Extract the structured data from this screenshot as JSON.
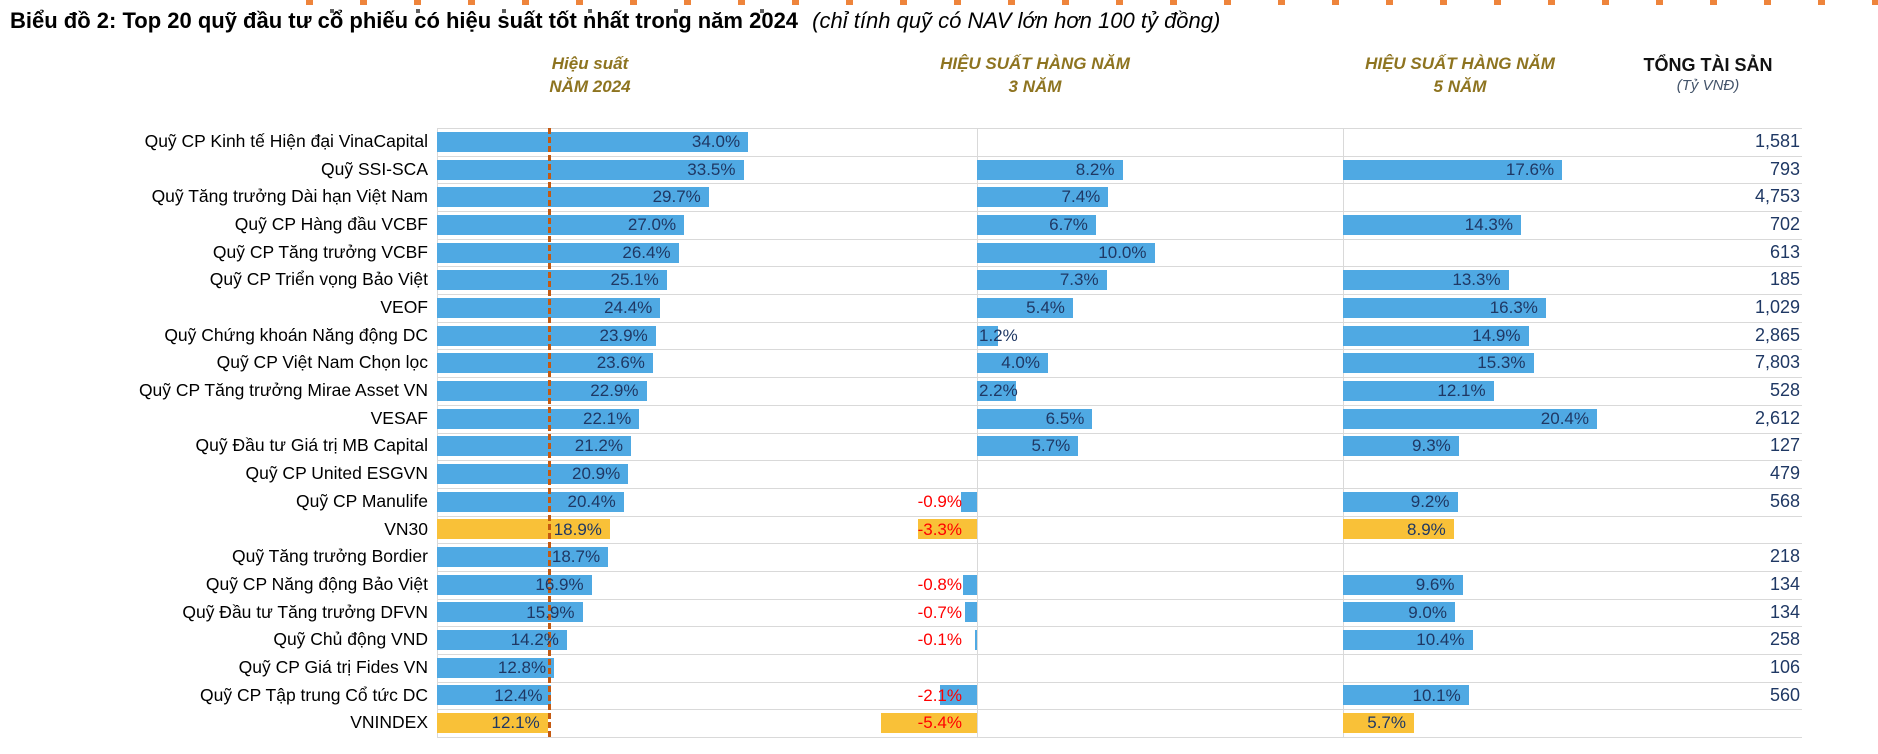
{
  "title": {
    "main": "Biểu đồ 2: Top 20 quỹ đầu tư cổ phiếu có hiệu suất tốt nhất trong năm 2024",
    "note": "(chỉ tính quỹ có NAV lớn hơn 100 tỷ đồng)"
  },
  "columns": {
    "perf_2024": {
      "line1": "Hiệu suất",
      "line2": "NĂM 2024"
    },
    "perf_3y": {
      "line1": "HIỆU SUẤT HÀNG NĂM",
      "line2": "3 NĂM"
    },
    "perf_5y": {
      "line1": "HIỆU SUẤT HÀNG NĂM",
      "line2": "5 NĂM"
    },
    "assets": {
      "line1": "TỔNG TÀI SẢN",
      "line2": "(Tỷ VNĐ)"
    }
  },
  "colors": {
    "bar_blue": "#4FA9E3",
    "bar_benchmark_yellow": "#F9C138",
    "value_navy": "#1F3864",
    "negative_red": "#FF0000",
    "header_gold": "#8E7420",
    "reference_dash": "#C55A11",
    "gridline": "#D9D9D9"
  },
  "chart_data": {
    "type": "bar",
    "orientation": "horizontal",
    "panels": [
      "Hiệu suất NĂM 2024 (%)",
      "HIỆU SUẤT HÀNG NĂM 3 NĂM (%)",
      "HIỆU SUẤT HÀNG NĂM 5 NĂM (%)",
      "TỔNG TÀI SẢN (Tỷ VNĐ)"
    ],
    "reference_line": {
      "panel": "perf_2024",
      "value": 12.1,
      "label": "VNINDEX 2024"
    },
    "legend_position": "none",
    "grid": "row-separators",
    "rows": [
      {
        "name": "Quỹ CP Kinh tế Hiện đại VinaCapital",
        "perf_2024": 34.0,
        "perf_3y": null,
        "perf_5y": null,
        "assets": 1581,
        "benchmark": false
      },
      {
        "name": "Quỹ SSI-SCA",
        "perf_2024": 33.5,
        "perf_3y": 8.2,
        "perf_5y": 17.6,
        "assets": 793,
        "benchmark": false
      },
      {
        "name": "Quỹ Tăng trưởng Dài hạn Việt Nam",
        "perf_2024": 29.7,
        "perf_3y": 7.4,
        "perf_5y": null,
        "assets": 4753,
        "benchmark": false
      },
      {
        "name": "Quỹ CP Hàng đầu VCBF",
        "perf_2024": 27.0,
        "perf_3y": 6.7,
        "perf_5y": 14.3,
        "assets": 702,
        "benchmark": false
      },
      {
        "name": "Quỹ CP Tăng trưởng VCBF",
        "perf_2024": 26.4,
        "perf_3y": 10.0,
        "perf_5y": null,
        "assets": 613,
        "benchmark": false
      },
      {
        "name": "Quỹ CP Triển vọng Bảo Việt",
        "perf_2024": 25.1,
        "perf_3y": 7.3,
        "perf_5y": 13.3,
        "assets": 185,
        "benchmark": false
      },
      {
        "name": "VEOF",
        "perf_2024": 24.4,
        "perf_3y": 5.4,
        "perf_5y": 16.3,
        "assets": 1029,
        "benchmark": false
      },
      {
        "name": "Quỹ Chứng khoán Năng động DC",
        "perf_2024": 23.9,
        "perf_3y": 1.2,
        "perf_5y": 14.9,
        "assets": 2865,
        "benchmark": false
      },
      {
        "name": "Quỹ CP Việt Nam Chọn lọc",
        "perf_2024": 23.6,
        "perf_3y": 4.0,
        "perf_5y": 15.3,
        "assets": 7803,
        "benchmark": false
      },
      {
        "name": "Quỹ CP Tăng trưởng Mirae Asset VN",
        "perf_2024": 22.9,
        "perf_3y": 2.2,
        "perf_5y": 12.1,
        "assets": 528,
        "benchmark": false
      },
      {
        "name": "VESAF",
        "perf_2024": 22.1,
        "perf_3y": 6.5,
        "perf_5y": 20.4,
        "assets": 2612,
        "benchmark": false
      },
      {
        "name": "Quỹ Đầu tư Giá trị MB Capital",
        "perf_2024": 21.2,
        "perf_3y": 5.7,
        "perf_5y": 9.3,
        "assets": 127,
        "benchmark": false
      },
      {
        "name": "Quỹ CP United ESGVN",
        "perf_2024": 20.9,
        "perf_3y": null,
        "perf_5y": null,
        "assets": 479,
        "benchmark": false
      },
      {
        "name": "Quỹ CP Manulife",
        "perf_2024": 20.4,
        "perf_3y": -0.9,
        "perf_5y": 9.2,
        "assets": 568,
        "benchmark": false
      },
      {
        "name": "VN30",
        "perf_2024": 18.9,
        "perf_3y": -3.3,
        "perf_5y": 8.9,
        "assets": null,
        "benchmark": true
      },
      {
        "name": "Quỹ Tăng trưởng Bordier",
        "perf_2024": 18.7,
        "perf_3y": null,
        "perf_5y": null,
        "assets": 218,
        "benchmark": false
      },
      {
        "name": "Quỹ CP Năng động Bảo Việt",
        "perf_2024": 16.9,
        "perf_3y": -0.8,
        "perf_5y": 9.6,
        "assets": 134,
        "benchmark": false
      },
      {
        "name": "Quỹ Đầu tư Tăng trưởng DFVN",
        "perf_2024": 15.9,
        "perf_3y": -0.7,
        "perf_5y": 9.0,
        "assets": 134,
        "benchmark": false
      },
      {
        "name": "Quỹ Chủ động VND",
        "perf_2024": 14.2,
        "perf_3y": -0.1,
        "perf_5y": 10.4,
        "assets": 258,
        "benchmark": false
      },
      {
        "name": "Quỹ CP Giá trị Fides VN",
        "perf_2024": 12.8,
        "perf_3y": null,
        "perf_5y": null,
        "assets": 106,
        "benchmark": false
      },
      {
        "name": "Quỹ CP Tập trung Cổ tức DC",
        "perf_2024": 12.4,
        "perf_3y": -2.1,
        "perf_5y": 10.1,
        "assets": 560,
        "benchmark": false
      },
      {
        "name": "VNINDEX",
        "perf_2024": 12.1,
        "perf_3y": -5.4,
        "perf_5y": 5.7,
        "assets": null,
        "benchmark": true
      }
    ]
  }
}
